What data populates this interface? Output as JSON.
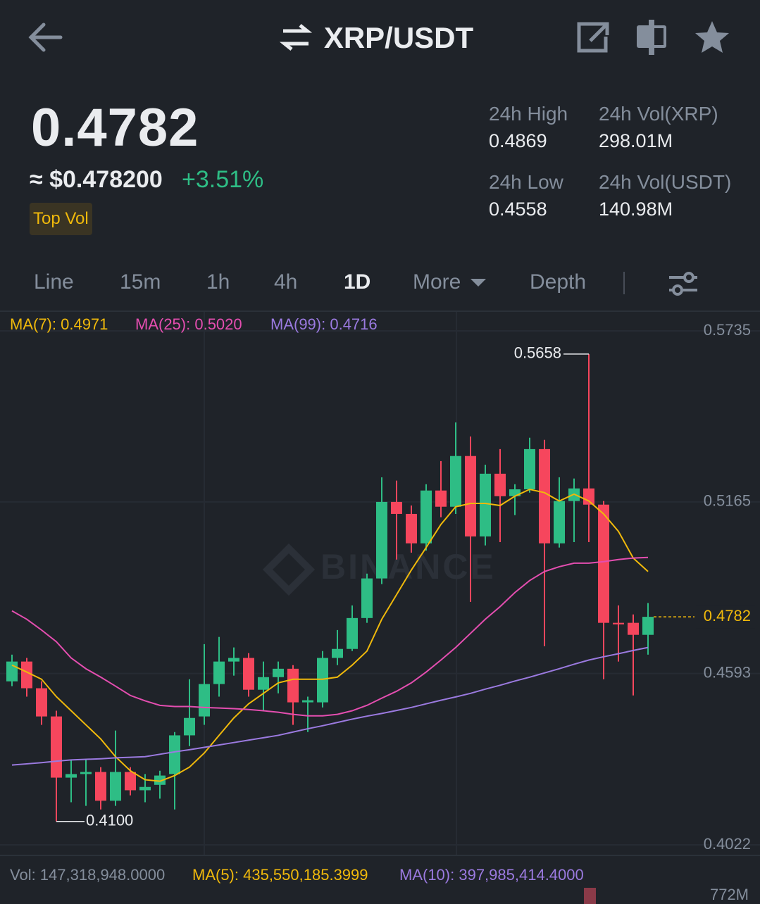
{
  "header": {
    "title": "XRP/USDT"
  },
  "ticker": {
    "price": "0.4782",
    "fiat": "≈ $0.478200",
    "change": "+3.51%",
    "badge": "Top Vol",
    "stats": [
      {
        "label": "24h High",
        "value": "0.4869"
      },
      {
        "label": "24h Vol(XRP)",
        "value": "298.01M"
      },
      {
        "label": "24h Low",
        "value": "0.4558"
      },
      {
        "label": "24h Vol(USDT)",
        "value": "140.98M"
      }
    ]
  },
  "tabs": [
    "Line",
    "15m",
    "1h",
    "4h",
    "1D",
    "More",
    "Depth"
  ],
  "active_tab": "1D",
  "volume_legend": {
    "vol": "Vol: 147,318,948.0000",
    "ma5": "MA(5): 435,550,185.3999",
    "ma10": "MA(10): 397,985,414.4000",
    "axis_max": "772M"
  },
  "watermark": "BINANCE",
  "chart_data": {
    "type": "candlestick",
    "ylim": [
      0.4022,
      0.5735
    ],
    "yticks": [
      0.5735,
      0.5165,
      0.4593,
      0.4022
    ],
    "grid": true,
    "up_color": "#2ebd85",
    "down_color": "#f6465d",
    "last_price": 0.4782,
    "low_label": "0.4100",
    "candles": [
      {
        "open": 0.4567,
        "high": 0.4656,
        "low": 0.4551,
        "close": 0.4633
      },
      {
        "open": 0.4633,
        "high": 0.4645,
        "low": 0.4516,
        "close": 0.4544
      },
      {
        "open": 0.4544,
        "high": 0.4567,
        "low": 0.4422,
        "close": 0.445
      },
      {
        "open": 0.445,
        "high": 0.4469,
        "low": 0.41,
        "close": 0.4246
      },
      {
        "open": 0.4246,
        "high": 0.4305,
        "low": 0.4164,
        "close": 0.4258
      },
      {
        "open": 0.4258,
        "high": 0.4305,
        "low": 0.4152,
        "close": 0.4265
      },
      {
        "open": 0.4265,
        "high": 0.4281,
        "low": 0.414,
        "close": 0.4169
      },
      {
        "open": 0.4169,
        "high": 0.4403,
        "low": 0.4152,
        "close": 0.4265
      },
      {
        "open": 0.4265,
        "high": 0.4281,
        "low": 0.4187,
        "close": 0.4204
      },
      {
        "open": 0.4204,
        "high": 0.4258,
        "low": 0.4164,
        "close": 0.4215
      },
      {
        "open": 0.4222,
        "high": 0.4269,
        "low": 0.4176,
        "close": 0.4253
      },
      {
        "open": 0.4258,
        "high": 0.4398,
        "low": 0.414,
        "close": 0.4387
      },
      {
        "open": 0.4387,
        "high": 0.4574,
        "low": 0.4351,
        "close": 0.4445
      },
      {
        "open": 0.445,
        "high": 0.4691,
        "low": 0.4422,
        "close": 0.4558
      },
      {
        "open": 0.4558,
        "high": 0.4715,
        "low": 0.4516,
        "close": 0.4633
      },
      {
        "open": 0.4633,
        "high": 0.468,
        "low": 0.4586,
        "close": 0.4645
      },
      {
        "open": 0.4645,
        "high": 0.4661,
        "low": 0.4516,
        "close": 0.4539
      },
      {
        "open": 0.4539,
        "high": 0.4633,
        "low": 0.4469,
        "close": 0.4581
      },
      {
        "open": 0.4581,
        "high": 0.4633,
        "low": 0.4527,
        "close": 0.4609
      },
      {
        "open": 0.4609,
        "high": 0.4621,
        "low": 0.4422,
        "close": 0.4497
      },
      {
        "open": 0.4497,
        "high": 0.4516,
        "low": 0.4398,
        "close": 0.4504
      },
      {
        "open": 0.4497,
        "high": 0.4668,
        "low": 0.448,
        "close": 0.4645
      },
      {
        "open": 0.4645,
        "high": 0.4738,
        "low": 0.4621,
        "close": 0.4675
      },
      {
        "open": 0.4675,
        "high": 0.482,
        "low": 0.4668,
        "close": 0.4778
      },
      {
        "open": 0.4778,
        "high": 0.4926,
        "low": 0.4762,
        "close": 0.491
      },
      {
        "open": 0.491,
        "high": 0.5247,
        "low": 0.4891,
        "close": 0.5165
      },
      {
        "open": 0.5165,
        "high": 0.5236,
        "low": 0.4973,
        "close": 0.5125
      },
      {
        "open": 0.5125,
        "high": 0.5153,
        "low": 0.4996,
        "close": 0.5027
      },
      {
        "open": 0.5027,
        "high": 0.5224,
        "low": 0.5003,
        "close": 0.5203
      },
      {
        "open": 0.5203,
        "high": 0.5301,
        "low": 0.5114,
        "close": 0.5149
      },
      {
        "open": 0.5149,
        "high": 0.543,
        "low": 0.5125,
        "close": 0.5318
      },
      {
        "open": 0.5318,
        "high": 0.5383,
        "low": 0.4832,
        "close": 0.505
      },
      {
        "open": 0.505,
        "high": 0.5289,
        "low": 0.502,
        "close": 0.5259
      },
      {
        "open": 0.5259,
        "high": 0.5341,
        "low": 0.5031,
        "close": 0.5184
      },
      {
        "open": 0.5184,
        "high": 0.5224,
        "low": 0.5121,
        "close": 0.5207
      },
      {
        "open": 0.5207,
        "high": 0.5379,
        "low": 0.5196,
        "close": 0.5341
      },
      {
        "open": 0.5341,
        "high": 0.5372,
        "low": 0.4684,
        "close": 0.5027
      },
      {
        "open": 0.5027,
        "high": 0.5247,
        "low": 0.5013,
        "close": 0.5168
      },
      {
        "open": 0.5168,
        "high": 0.5243,
        "low": 0.5031,
        "close": 0.521
      },
      {
        "open": 0.521,
        "high": 0.5658,
        "low": 0.5031,
        "close": 0.5156
      },
      {
        "open": 0.5156,
        "high": 0.5168,
        "low": 0.4574,
        "close": 0.4762
      },
      {
        "open": 0.4762,
        "high": 0.482,
        "low": 0.4633,
        "close": 0.4757
      },
      {
        "open": 0.4762,
        "high": 0.479,
        "low": 0.452,
        "close": 0.4722
      },
      {
        "open": 0.4722,
        "high": 0.4828,
        "low": 0.4656,
        "close": 0.4782
      }
    ],
    "series": [
      {
        "name": "MA(7): 0.4971",
        "color": "#f0b90b",
        "values": [
          0.4621,
          0.4598,
          0.4574,
          0.4516,
          0.4469,
          0.4422,
          0.4375,
          0.4316,
          0.4269,
          0.4239,
          0.4234,
          0.4253,
          0.4281,
          0.4328,
          0.4387,
          0.4445,
          0.4492,
          0.4527,
          0.4562,
          0.4574,
          0.4574,
          0.4574,
          0.4581,
          0.4621,
          0.4668,
          0.4774,
          0.4856,
          0.4938,
          0.5013,
          0.509,
          0.5149,
          0.516,
          0.516,
          0.5153,
          0.5184,
          0.5207,
          0.5196,
          0.5168,
          0.5191,
          0.5168,
          0.5125,
          0.5067,
          0.4978,
          0.4933
        ]
      },
      {
        "name": "MA(25): 0.5020",
        "color": "#e44eb0",
        "values": [
          0.4802,
          0.4774,
          0.4738,
          0.4699,
          0.4645,
          0.4609,
          0.4581,
          0.4551,
          0.452,
          0.4502,
          0.4487,
          0.4483,
          0.4483,
          0.448,
          0.4478,
          0.4476,
          0.4473,
          0.4469,
          0.4464,
          0.4457,
          0.4452,
          0.4452,
          0.4457,
          0.4469,
          0.4487,
          0.4511,
          0.4534,
          0.4562,
          0.4598,
          0.4638,
          0.468,
          0.4727,
          0.4774,
          0.4816,
          0.4863,
          0.4903,
          0.4933,
          0.4949,
          0.4961,
          0.4961,
          0.4966,
          0.4973,
          0.4978,
          0.498
        ]
      },
      {
        "name": "MA(99): 0.4716",
        "color": "#9b7ae0",
        "values": [
          0.4288,
          0.4292,
          0.4296,
          0.4301,
          0.4305,
          0.4307,
          0.4309,
          0.4312,
          0.4314,
          0.4316,
          0.4324,
          0.4332,
          0.4339,
          0.4347,
          0.4355,
          0.4363,
          0.4371,
          0.4379,
          0.4387,
          0.4398,
          0.4409,
          0.4419,
          0.443,
          0.4441,
          0.4451,
          0.446,
          0.447,
          0.448,
          0.4492,
          0.4504,
          0.4515,
          0.4527,
          0.4541,
          0.4554,
          0.4568,
          0.4581,
          0.4595,
          0.4609,
          0.4624,
          0.4638,
          0.4649,
          0.4659,
          0.467,
          0.468
        ]
      }
    ]
  }
}
